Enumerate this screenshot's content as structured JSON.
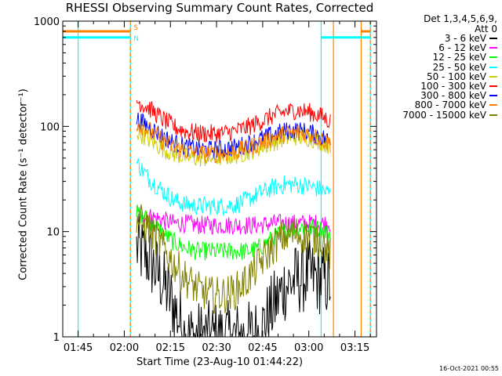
{
  "chart_data": {
    "type": "line",
    "title": "RHESSI Observing Summary Count Rates, Corrected",
    "xlabel": "Start Time (23-Aug-10 01:44:22)",
    "ylabel": "Corrected Count Rate (s⁻¹ detector⁻¹)",
    "y_scale": "log",
    "ylim": [
      1,
      1000
    ],
    "xlim": [
      "01:40",
      "03:22"
    ],
    "x_ticks": [
      "01:45",
      "02:00",
      "02:15",
      "02:30",
      "02:45",
      "03:00",
      "03:15"
    ],
    "y_ticks": [
      "1",
      "10",
      "100",
      "1000"
    ],
    "legend_header": [
      "Det 1,3,4,5,6,9,",
      "Att 0"
    ],
    "legend_position": "right",
    "series": [
      {
        "name": "3 - 6 keV",
        "color": "#000000",
        "x": [
          "02:04",
          "02:08",
          "02:12",
          "02:16",
          "02:20",
          "02:24",
          "02:28",
          "02:32",
          "02:36",
          "02:40",
          "02:44",
          "02:48",
          "02:52",
          "02:56",
          "03:00",
          "03:04",
          "03:07"
        ],
        "values": [
          7,
          5.5,
          3.5,
          2,
          1,
          1,
          1,
          1,
          1,
          1,
          1.1,
          1.8,
          3,
          3.5,
          3.8,
          3.5,
          3.2
        ]
      },
      {
        "name": "6 - 12 keV",
        "color": "#ff00ff",
        "x": [
          "02:04",
          "02:08",
          "02:12",
          "02:16",
          "02:20",
          "02:24",
          "02:28",
          "02:32",
          "02:36",
          "02:40",
          "02:44",
          "02:48",
          "02:52",
          "02:56",
          "03:00",
          "03:04",
          "03:07"
        ],
        "values": [
          15,
          14,
          13,
          12,
          12,
          11.5,
          11.5,
          11.5,
          11.5,
          11.5,
          11.5,
          12,
          12,
          12,
          12,
          12,
          12
        ]
      },
      {
        "name": "12 - 25 keV",
        "color": "#00ff00",
        "x": [
          "02:04",
          "02:08",
          "02:12",
          "02:16",
          "02:20",
          "02:24",
          "02:28",
          "02:32",
          "02:36",
          "02:40",
          "02:44",
          "02:48",
          "02:52",
          "02:56",
          "03:00",
          "03:04",
          "03:07"
        ],
        "values": [
          15,
          13,
          10,
          8,
          7,
          6.5,
          6.5,
          6.5,
          6.5,
          6.5,
          7,
          8.5,
          10,
          11,
          11,
          10.5,
          9.5
        ]
      },
      {
        "name": "25 - 50 keV",
        "color": "#00ffff",
        "x": [
          "02:04",
          "02:08",
          "02:12",
          "02:16",
          "02:20",
          "02:24",
          "02:28",
          "02:32",
          "02:36",
          "02:40",
          "02:44",
          "02:48",
          "02:52",
          "02:56",
          "03:00",
          "03:04",
          "03:07"
        ],
        "values": [
          45,
          32,
          25,
          20,
          18,
          17.5,
          17.5,
          17.5,
          18,
          20,
          23,
          26,
          28,
          28,
          27,
          25,
          23
        ]
      },
      {
        "name": "50 - 100 keV",
        "color": "#cccc00",
        "x": [
          "02:04",
          "02:08",
          "02:12",
          "02:16",
          "02:20",
          "02:24",
          "02:28",
          "02:32",
          "02:36",
          "02:40",
          "02:44",
          "02:48",
          "02:52",
          "02:56",
          "03:00",
          "03:04",
          "03:07"
        ],
        "values": [
          90,
          75,
          63,
          55,
          51,
          50,
          50,
          51,
          53,
          57,
          63,
          70,
          77,
          80,
          78,
          72,
          65
        ]
      },
      {
        "name": "100 - 300 keV",
        "color": "#ff0000",
        "x": [
          "02:04",
          "02:08",
          "02:12",
          "02:16",
          "02:20",
          "02:24",
          "02:28",
          "02:32",
          "02:36",
          "02:40",
          "02:44",
          "02:48",
          "02:52",
          "02:56",
          "03:00",
          "03:04",
          "03:07"
        ],
        "values": [
          175,
          150,
          120,
          100,
          90,
          86,
          85,
          86,
          90,
          98,
          110,
          125,
          137,
          143,
          137,
          125,
          112
        ]
      },
      {
        "name": "300 - 800 keV",
        "color": "#0000ff",
        "x": [
          "02:04",
          "02:08",
          "02:12",
          "02:16",
          "02:20",
          "02:24",
          "02:28",
          "02:32",
          "02:36",
          "02:40",
          "02:44",
          "02:48",
          "02:52",
          "02:56",
          "03:00",
          "03:04",
          "03:07"
        ],
        "values": [
          118,
          100,
          82,
          70,
          64,
          61,
          60,
          61,
          63,
          68,
          75,
          83,
          90,
          92,
          88,
          80,
          72
        ]
      },
      {
        "name": "800 - 7000 keV",
        "color": "#ff8000",
        "x": [
          "02:04",
          "02:08",
          "02:12",
          "02:16",
          "02:20",
          "02:24",
          "02:28",
          "02:32",
          "02:36",
          "02:40",
          "02:44",
          "02:48",
          "02:52",
          "02:56",
          "03:00",
          "03:04",
          "03:07"
        ],
        "values": [
          108,
          92,
          75,
          64,
          58,
          55,
          55,
          55,
          57,
          62,
          69,
          77,
          84,
          87,
          84,
          76,
          68
        ]
      },
      {
        "name": "7000 - 15000 keV",
        "color": "#808000",
        "x": [
          "02:04",
          "02:08",
          "02:12",
          "02:16",
          "02:20",
          "02:24",
          "02:28",
          "02:32",
          "02:36",
          "02:40",
          "02:44",
          "02:48",
          "02:52",
          "02:56",
          "03:00",
          "03:04",
          "03:07"
        ],
        "values": [
          13,
          11,
          7.5,
          5,
          3.6,
          2.8,
          2.5,
          2.5,
          2.7,
          3.5,
          5,
          7,
          9,
          9.5,
          9,
          8.5,
          6
        ]
      }
    ],
    "flag_bars": [
      {
        "label": "S",
        "color": "#ff8000",
        "value": 800,
        "segments": [
          [
            "01:40",
            "02:02"
          ],
          [
            "03:17",
            "03:20"
          ]
        ]
      },
      {
        "label": "N",
        "color": "#00ffff",
        "value": 700,
        "segments": [
          [
            "01:40",
            "02:02"
          ],
          [
            "03:04",
            "03:20"
          ]
        ]
      }
    ],
    "vertical_lines": [
      {
        "x": "01:45",
        "color": "#00ffff",
        "style": "solid"
      },
      {
        "x": "02:02",
        "color": "#00ffff",
        "style": "solid"
      },
      {
        "x": "02:02",
        "color": "#ff8000",
        "style": "dashed"
      },
      {
        "x": "03:04",
        "color": "#00ffff",
        "style": "solid"
      },
      {
        "x": "03:08",
        "color": "#ff8000",
        "style": "solid"
      },
      {
        "x": "03:17",
        "color": "#ff8000",
        "style": "solid"
      },
      {
        "x": "03:20",
        "color": "#00ffff",
        "style": "solid"
      },
      {
        "x": "03:20",
        "color": "#ff8000",
        "style": "dashed"
      }
    ],
    "grid": false
  },
  "timestamp": "16-Oct-2021 00:55"
}
